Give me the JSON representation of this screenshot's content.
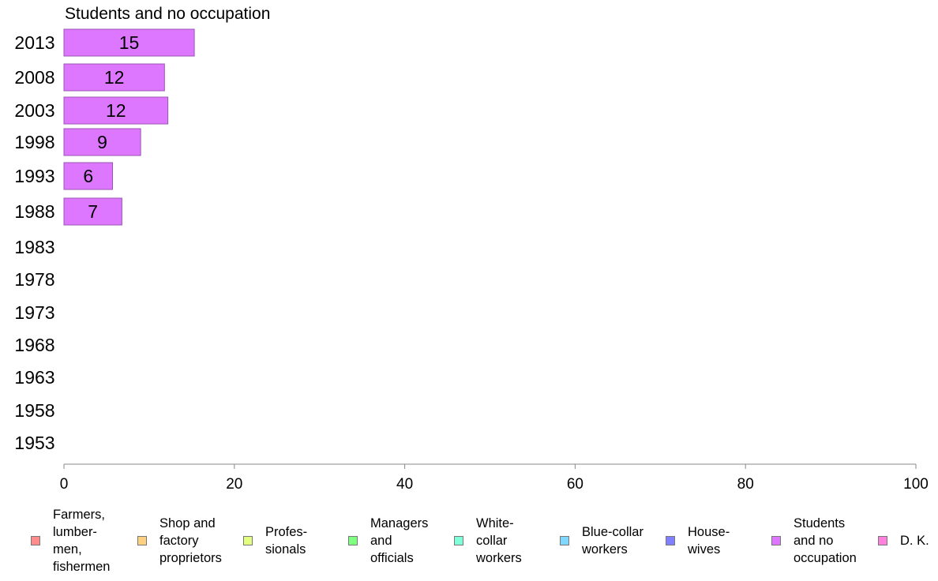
{
  "chart_data": {
    "type": "bar",
    "orientation": "horizontal",
    "title": "Students and no occupation",
    "categories": [
      "2013",
      "2008",
      "2003",
      "1998",
      "1993",
      "1988",
      "1983",
      "1978",
      "1973",
      "1968",
      "1963",
      "1958",
      "1953"
    ],
    "series": [
      {
        "name": "Students and no occupation",
        "color": "#dd77ff",
        "values": [
          15.3,
          11.8,
          12.2,
          9.0,
          5.7,
          6.8,
          null,
          null,
          null,
          null,
          null,
          null,
          null
        ],
        "labels": [
          "15",
          "12",
          "12",
          "9",
          "6",
          "7",
          "",
          "",
          "",
          "",
          "",
          "",
          ""
        ]
      }
    ],
    "xlim": [
      0,
      100
    ],
    "xticks": [
      "0",
      "20",
      "40",
      "60",
      "80",
      "100"
    ],
    "grid": false,
    "legend_position": "bottom",
    "legend": [
      {
        "label": "Farmers,\nlumber-\nmen,\nfishermen",
        "color": "#ff8c8c"
      },
      {
        "label": "Shop and\nfactory\nproprietors",
        "color": "#ffd080"
      },
      {
        "label": "Profes-\nsionals",
        "color": "#e4ff80"
      },
      {
        "label": "Managers\nand\nofficials",
        "color": "#80ff80"
      },
      {
        "label": "White-\ncollar\nworkers",
        "color": "#80ffd8"
      },
      {
        "label": "Blue-collar\nworkers",
        "color": "#80d8ff"
      },
      {
        "label": "House-\nwives",
        "color": "#8080ff"
      },
      {
        "label": "Students\nand no\noccupation",
        "color": "#dd77ff"
      },
      {
        "label": "D. K.",
        "color": "#ff80dd"
      }
    ]
  }
}
